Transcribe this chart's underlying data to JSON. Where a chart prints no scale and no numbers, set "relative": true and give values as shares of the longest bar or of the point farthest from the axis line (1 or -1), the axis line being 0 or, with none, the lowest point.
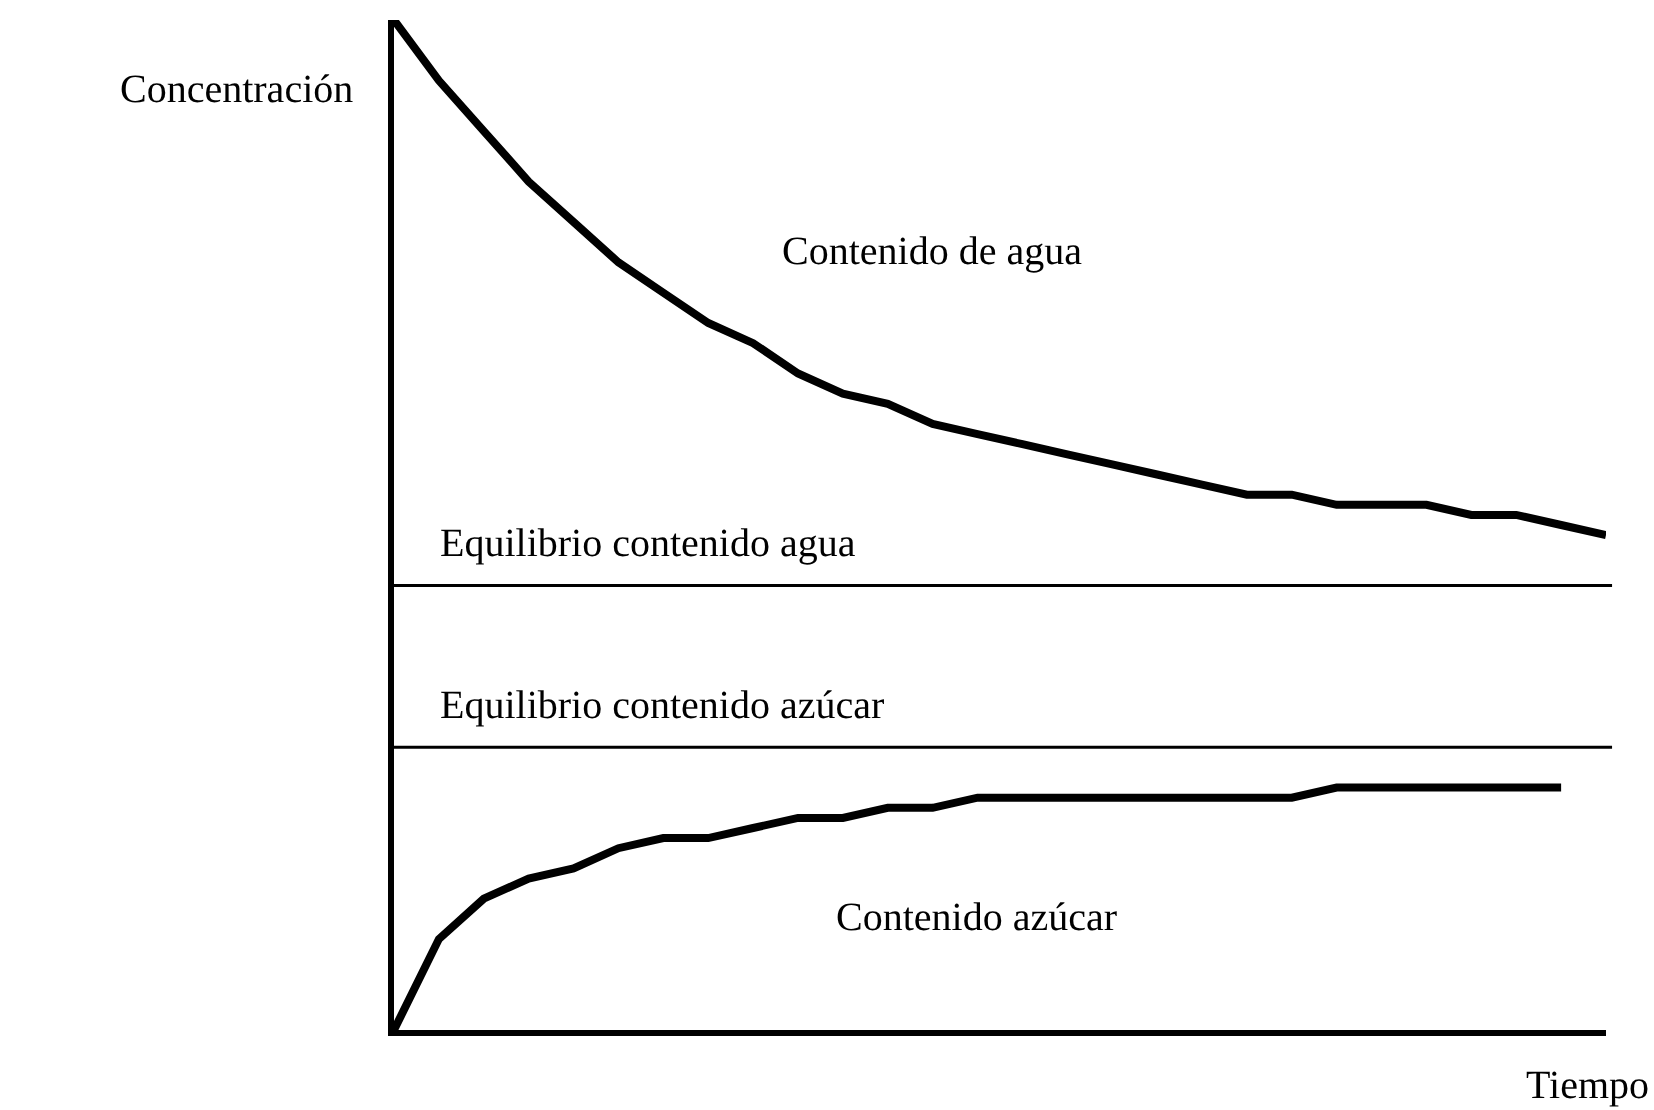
{
  "chart_data": {
    "type": "line",
    "relative": true,
    "xlabel": "Tiempo",
    "ylabel": "Concentración",
    "categories": [
      null,
      null,
      null,
      null,
      null,
      null,
      null,
      null,
      null,
      null,
      null,
      null,
      null,
      null,
      null,
      null,
      null,
      null,
      null,
      null,
      null,
      null,
      null,
      null,
      null,
      null,
      null,
      null
    ],
    "series": [
      {
        "name": "Contenido de agua",
        "color": "#000000",
        "values": [
          1.0,
          0.94,
          0.89,
          0.84,
          0.8,
          0.76,
          0.73,
          0.7,
          0.68,
          0.65,
          0.63,
          0.62,
          0.6,
          0.59,
          0.58,
          0.57,
          0.56,
          0.55,
          0.54,
          0.53,
          0.53,
          0.52,
          0.52,
          0.52,
          0.51,
          0.51,
          0.5,
          0.49
        ]
      },
      {
        "name": "Contenido azúcar",
        "color": "#000000",
        "values": [
          0,
          0.09,
          0.13,
          0.15,
          0.16,
          0.18,
          0.19,
          0.19,
          0.2,
          0.21,
          0.21,
          0.22,
          0.22,
          0.23,
          0.23,
          0.23,
          0.23,
          0.23,
          0.23,
          0.23,
          0.23,
          0.24,
          0.24,
          0.24,
          0.24,
          0.24,
          0.24,
          null
        ]
      }
    ],
    "ref_lines": [
      {
        "axis": "y",
        "value": 0.44,
        "label": "Equilibrio contenido agua",
        "color": "#000000"
      },
      {
        "axis": "y",
        "value": 0.28,
        "label": "Equilibrio contenido azúcar",
        "color": "#000000"
      }
    ],
    "legend": false,
    "marker": "none",
    "line_style": "solid"
  }
}
